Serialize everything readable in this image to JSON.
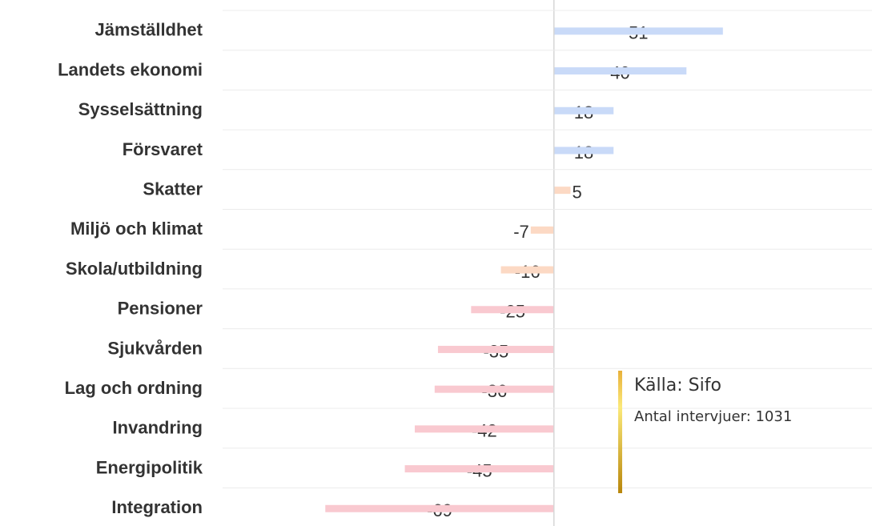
{
  "chart_data": {
    "type": "hbar",
    "categories": [
      "Jämställdhet",
      "Landets ekonomi",
      "Sysselsättning",
      "Försvaret",
      "Skatter",
      "Miljö och klimat",
      "Skola/utbildning",
      "Pensioner",
      "Sjukvården",
      "Lag och ordning",
      "Invandring",
      "Energipolitik",
      "Integration"
    ],
    "values": [
      51,
      40,
      18,
      18,
      5,
      -7,
      -16,
      -25,
      -35,
      -36,
      -42,
      -45,
      -69
    ],
    "colors": [
      "#c9daf8",
      "#c9daf8",
      "#c9daf8",
      "#c9daf8",
      "#fcd9c4",
      "#fcd9c4",
      "#fcd9c4",
      "#f9c9d0",
      "#f9c9d0",
      "#f9c9d0",
      "#f9c9d0",
      "#f9c9d0",
      "#f9c9d0"
    ],
    "xlim": [
      -100,
      96
    ],
    "grid": true,
    "annotations": [
      "Källa: Sifo",
      "Antal intervjuer: 1031"
    ]
  }
}
